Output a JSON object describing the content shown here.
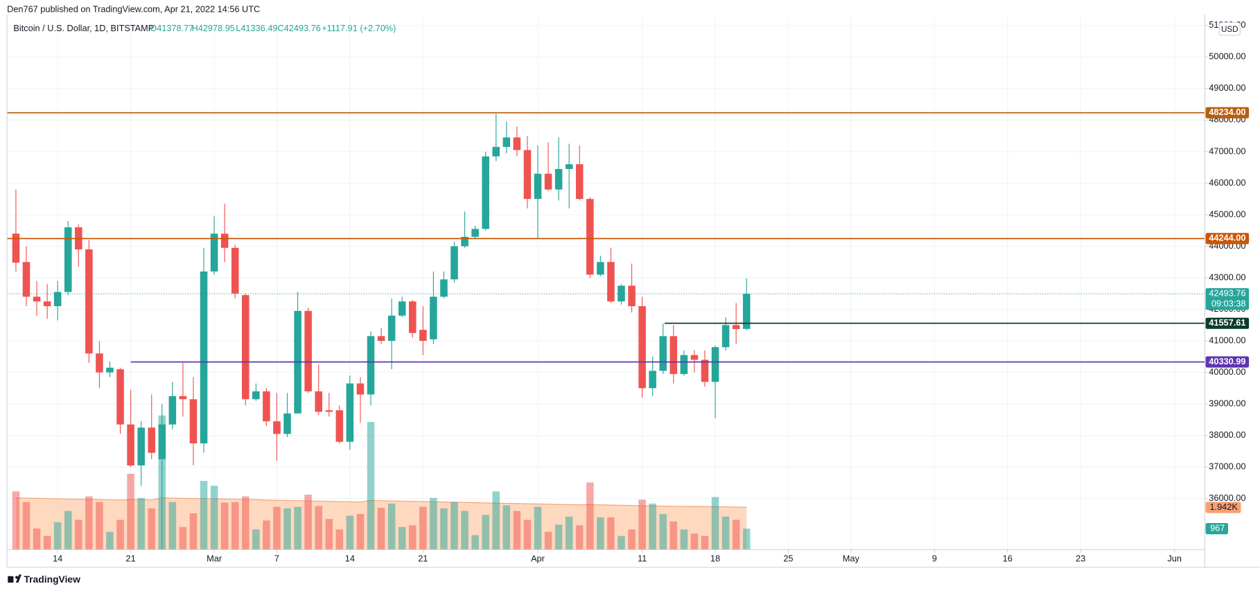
{
  "chart_data": {
    "type": "candlestick",
    "header": "Den767 published on TradingView.com, Apr 21, 2022 14:56 UTC",
    "symbol": "Bitcoin / U.S. Dollar, 1D, BITSTAMP",
    "ohlc_labels": [
      "O41378.77",
      "H42978.95",
      "L41336.49",
      "C42493.76",
      "+1117.91 (+2.70%)"
    ],
    "currency": "USD",
    "footer": "TradingView",
    "up_color": "#26a69a",
    "down_color": "#ef5350",
    "open": [
      44400,
      43500,
      42400,
      42250,
      42100,
      42550,
      44600,
      43900,
      40600,
      40000,
      40100,
      38350,
      37050,
      38250,
      37250,
      38350,
      39250,
      39150,
      37750,
      43200,
      44400,
      43950,
      42450,
      39150,
      39400,
      38450,
      38050,
      38700,
      41950,
      39400,
      38800,
      38800,
      37800,
      39650,
      39300,
      41150,
      41000,
      41800,
      42250,
      41350,
      41050,
      42400,
      42950,
      44000,
      44300,
      44550,
      46850,
      47150,
      47450,
      47050,
      45500,
      46300,
      45800,
      46450,
      46600,
      45500,
      43100,
      43500,
      42250,
      42750,
      42100,
      39500,
      40050,
      41150,
      39950,
      40550,
      40400,
      39700,
      40800,
      41500,
      41378.77
    ],
    "high": [
      45800,
      44000,
      42900,
      42800,
      42900,
      44800,
      44700,
      44200,
      41000,
      40350,
      40150,
      39450,
      38450,
      39300,
      39000,
      39700,
      40300,
      39850,
      43950,
      44950,
      45350,
      44050,
      42500,
      39650,
      39500,
      39350,
      39350,
      42550,
      42050,
      40250,
      39350,
      38950,
      39900,
      39850,
      41300,
      41400,
      42350,
      42400,
      42300,
      42100,
      43200,
      43200,
      44150,
      45100,
      44650,
      47000,
      48200,
      47950,
      47800,
      47500,
      47200,
      47300,
      47450,
      47250,
      47200,
      45550,
      43700,
      43950,
      42800,
      43450,
      42400,
      40500,
      41550,
      41500,
      40700,
      40700,
      40700,
      40850,
      41750,
      42200,
      42978.95
    ],
    "low": [
      43200,
      42100,
      41800,
      41700,
      41650,
      42450,
      43350,
      40300,
      39500,
      39850,
      38050,
      37000,
      36400,
      37250,
      34400,
      38200,
      38600,
      37050,
      37450,
      43100,
      43500,
      42350,
      38950,
      39100,
      38300,
      37200,
      37950,
      38700,
      39350,
      38650,
      38600,
      37750,
      37550,
      38400,
      38950,
      40900,
      40100,
      41750,
      41100,
      40550,
      40900,
      42350,
      42850,
      43950,
      44250,
      44500,
      46700,
      46950,
      46850,
      45200,
      44250,
      45750,
      45450,
      45200,
      45450,
      43000,
      43050,
      42200,
      42150,
      41900,
      39200,
      39250,
      39950,
      39650,
      39900,
      40000,
      39550,
      38550,
      40700,
      40900,
      41336.49
    ],
    "close": [
      43480,
      42400,
      42250,
      42100,
      42550,
      44600,
      43900,
      40600,
      40000,
      40150,
      38350,
      37050,
      38250,
      37450,
      38350,
      39250,
      39150,
      37750,
      43200,
      44400,
      43950,
      42500,
      39150,
      39400,
      38450,
      38050,
      38700,
      41950,
      39400,
      38750,
      38750,
      37800,
      39650,
      39300,
      41150,
      41000,
      41800,
      42250,
      41250,
      41000,
      42400,
      42950,
      44000,
      44300,
      44550,
      46850,
      47150,
      47450,
      47050,
      45500,
      46300,
      45800,
      46450,
      46600,
      45500,
      43100,
      43500,
      42250,
      42750,
      42100,
      39500,
      40050,
      41150,
      39950,
      40550,
      40400,
      39700,
      40800,
      41500,
      41376,
      42493.76
    ],
    "volume": [
      2680,
      2190,
      970,
      630,
      1260,
      1780,
      1370,
      2450,
      2190,
      820,
      1370,
      3490,
      2380,
      1900,
      6170,
      2190,
      1040,
      1670,
      3160,
      2940,
      2160,
      2190,
      2450,
      930,
      1340,
      1970,
      1900,
      1970,
      2530,
      2010,
      1410,
      930,
      1560,
      1640,
      5870,
      1930,
      2120,
      1040,
      1120,
      1970,
      2380,
      1900,
      2190,
      1780,
      670,
      1600,
      2680,
      2040,
      1780,
      1370,
      1970,
      820,
      1150,
      1520,
      1120,
      3090,
      1490,
      1490,
      630,
      930,
      2300,
      2120,
      1640,
      1300,
      930,
      740,
      630,
      2420,
      1520,
      1370,
      967
    ],
    "volume_ma": [
      2380,
      2370,
      2360,
      2350,
      2340,
      2330,
      2320,
      2310,
      2300,
      2290,
      2280,
      2300,
      2300,
      2290,
      2380,
      2370,
      2360,
      2350,
      2350,
      2340,
      2330,
      2320,
      2310,
      2300,
      2280,
      2270,
      2260,
      2250,
      2240,
      2230,
      2220,
      2210,
      2200,
      2190,
      2260,
      2250,
      2240,
      2230,
      2220,
      2210,
      2200,
      2190,
      2180,
      2170,
      2160,
      2150,
      2140,
      2130,
      2120,
      2110,
      2100,
      2090,
      2080,
      2070,
      2060,
      2070,
      2060,
      2050,
      2040,
      2030,
      2020,
      2010,
      2000,
      1995,
      1990,
      1985,
      1980,
      1975,
      1970,
      1960,
      1942
    ],
    "volume_labels": [
      {
        "value": 1942,
        "label": "1.942K"
      },
      {
        "value": 967,
        "label": "967"
      }
    ],
    "xlim": [
      -0.85,
      113.9
    ],
    "xticks": [
      {
        "value": 4,
        "label": "14"
      },
      {
        "value": 11,
        "label": "21"
      },
      {
        "value": 19,
        "label": "Mar"
      },
      {
        "value": 25,
        "label": "7"
      },
      {
        "value": 32,
        "label": "14"
      },
      {
        "value": 39,
        "label": "21"
      },
      {
        "value": 50,
        "label": "Apr"
      },
      {
        "value": 60,
        "label": "11"
      },
      {
        "value": 67,
        "label": "18"
      },
      {
        "value": 74,
        "label": "25"
      },
      {
        "value": 80,
        "label": "May"
      },
      {
        "value": 88,
        "label": "9"
      },
      {
        "value": 95,
        "label": "16"
      },
      {
        "value": 102,
        "label": "23"
      },
      {
        "value": 111,
        "label": "Jun"
      }
    ],
    "ylim": [
      34380,
      51350
    ],
    "yticks": [
      {
        "value": 36000,
        "label": "36000.00"
      },
      {
        "value": 37000,
        "label": "37000.00"
      },
      {
        "value": 38000,
        "label": "38000.00"
      },
      {
        "value": 39000,
        "label": "39000.00"
      },
      {
        "value": 40000,
        "label": "40000.00"
      },
      {
        "value": 41000,
        "label": "41000.00"
      },
      {
        "value": 42000,
        "label": "42000.00"
      },
      {
        "value": 43000,
        "label": "43000.00"
      },
      {
        "value": 44000,
        "label": "44000.00"
      },
      {
        "value": 45000,
        "label": "45000.00"
      },
      {
        "value": 46000,
        "label": "46000.00"
      },
      {
        "value": 47000,
        "label": "47000.00"
      },
      {
        "value": 48000,
        "label": "48000.00"
      },
      {
        "value": 49000,
        "label": "49000.00"
      },
      {
        "value": 50000,
        "label": "50000.00"
      },
      {
        "value": 51000,
        "label": "51000.00"
      }
    ],
    "y2lim": [
      0,
      24600
    ],
    "levels": [
      {
        "value": 48234,
        "label": "48234.00",
        "color": "#b8600e"
      },
      {
        "value": 44244,
        "label": "44244.00",
        "color": "#cc5500"
      },
      {
        "value": 41557.61,
        "label": "41557.61",
        "color": "#0d3b2e"
      },
      {
        "value": 40330.99,
        "label": "40330.99",
        "color": "#5e35b1"
      }
    ],
    "last_price": {
      "value": 42493.76,
      "label": "42493.76",
      "countdown": "09:03:38"
    },
    "grid": true
  }
}
